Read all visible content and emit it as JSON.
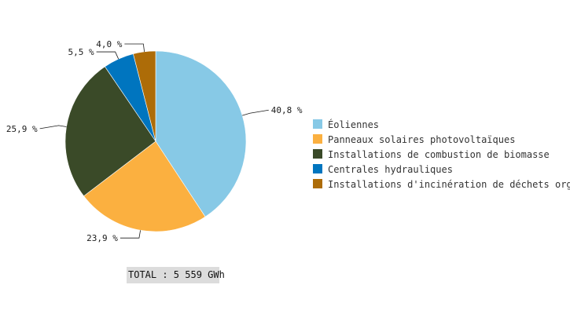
{
  "chart_data": {
    "type": "pie",
    "title": "",
    "slices": [
      {
        "label": "Éoliennes",
        "value": 40.8,
        "value_label": "40,8 %",
        "color": "#87c9e6"
      },
      {
        "label": "Panneaux solaires photovoltaïques",
        "value": 23.9,
        "value_label": "23,9 %",
        "color": "#fbb040"
      },
      {
        "label": "Installations de combustion de biomasse",
        "value": 25.9,
        "value_label": "25,9 %",
        "color": "#3a4a28"
      },
      {
        "label": "Centrales hydrauliques",
        "value": 5.5,
        "value_label": "5,5 %",
        "color": "#0075bf"
      },
      {
        "label": "Installations d'incinération de déchets organiques",
        "value": 4.0,
        "value_label": "4,0 %",
        "color": "#ad6c08"
      }
    ],
    "slice_order": [
      0,
      1,
      2,
      3,
      4
    ],
    "start": "top",
    "direction": "clockwise",
    "legend_position": "right",
    "total_label": "TOTAL : 5 559 GWh"
  },
  "colors": {
    "leader_line": "#1a1a1a",
    "total_background": "#dcdcdc",
    "slice_border": "#ffffff"
  }
}
